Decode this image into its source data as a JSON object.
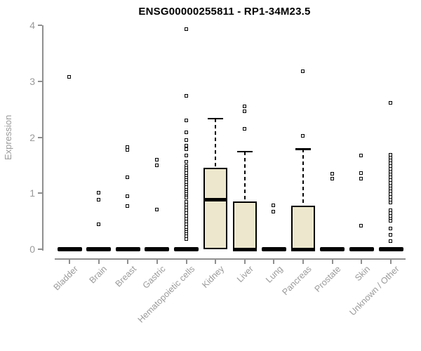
{
  "chart_data": {
    "type": "boxplot",
    "title": "ENSG00000255811 - RP1-34M23.5",
    "ylabel": "Expression",
    "xlabel": "",
    "ylim": [
      0,
      4
    ],
    "yticks": [
      0,
      1,
      2,
      3,
      4
    ],
    "grid": false,
    "legend": null,
    "categories": [
      "Bladder",
      "Brain",
      "Breast",
      "Gastric",
      "Hematopoietic cells",
      "Kidney",
      "Liver",
      "Lung",
      "Pancreas",
      "Prostate",
      "Skin",
      "Unknown / Other"
    ],
    "series": [
      {
        "category": "Bladder",
        "q1": 0,
        "median": 0,
        "q3": 0,
        "whisker_low": 0,
        "whisker_high": 0,
        "outliers": [
          3.08
        ]
      },
      {
        "category": "Brain",
        "q1": 0,
        "median": 0,
        "q3": 0,
        "whisker_low": 0,
        "whisker_high": 0,
        "outliers": [
          1.0,
          0.88,
          0.44
        ]
      },
      {
        "category": "Breast",
        "q1": 0,
        "median": 0,
        "q3": 0,
        "whisker_low": 0,
        "whisker_high": 0,
        "outliers": [
          1.82,
          1.77,
          1.28,
          0.94,
          0.77
        ]
      },
      {
        "category": "Gastric",
        "q1": 0,
        "median": 0,
        "q3": 0,
        "whisker_low": 0,
        "whisker_high": 0,
        "outliers": [
          1.59,
          1.49,
          0.7
        ]
      },
      {
        "category": "Hematopoietic cells",
        "q1": 0,
        "median": 0,
        "q3": 0,
        "whisker_low": 0,
        "whisker_high": 0,
        "outliers": [
          3.93,
          2.74,
          2.3,
          2.08,
          1.95,
          1.85,
          1.78,
          1.67,
          1.56,
          1.48,
          1.44,
          1.4,
          1.36,
          1.31,
          1.27,
          1.23,
          1.19,
          1.14,
          1.1,
          1.06,
          1.02,
          0.98,
          0.94,
          0.91,
          0.84,
          0.79,
          0.74,
          0.69,
          0.64,
          0.59,
          0.54,
          0.49,
          0.44,
          0.39,
          0.34,
          0.3,
          0.26,
          0.22,
          0.18
        ]
      },
      {
        "category": "Kidney",
        "q1": 0,
        "median": 0.88,
        "q3": 1.46,
        "whisker_low": 0,
        "whisker_high": 2.34,
        "outliers": []
      },
      {
        "category": "Liver",
        "q1": 0,
        "median": 0,
        "q3": 0.85,
        "whisker_low": 0,
        "whisker_high": 1.75,
        "outliers": [
          2.55,
          2.46,
          2.15
        ]
      },
      {
        "category": "Lung",
        "q1": 0,
        "median": 0,
        "q3": 0,
        "whisker_low": 0,
        "whisker_high": 0,
        "outliers": [
          0.78,
          0.67
        ]
      },
      {
        "category": "Pancreas",
        "q1": 0,
        "median": 0,
        "q3": 0.78,
        "whisker_low": 0,
        "whisker_high": 1.79,
        "outliers": [
          3.17,
          2.02
        ]
      },
      {
        "category": "Prostate",
        "q1": 0,
        "median": 0,
        "q3": 0,
        "whisker_low": 0,
        "whisker_high": 0,
        "outliers": [
          1.34,
          1.25
        ]
      },
      {
        "category": "Skin",
        "q1": 0,
        "median": 0,
        "q3": 0,
        "whisker_low": 0,
        "whisker_high": 0,
        "outliers": [
          1.67,
          1.35,
          1.26,
          0.42
        ]
      },
      {
        "category": "Unknown / Other",
        "q1": 0,
        "median": 0,
        "q3": 0,
        "whisker_low": 0,
        "whisker_high": 0,
        "outliers": [
          2.61,
          1.68,
          1.63,
          1.58,
          1.53,
          1.48,
          1.43,
          1.38,
          1.33,
          1.28,
          1.23,
          1.18,
          1.13,
          1.08,
          1.03,
          0.98,
          0.93,
          0.88,
          0.83,
          0.69,
          0.64,
          0.59,
          0.54,
          0.5,
          0.37,
          0.25,
          0.14
        ]
      }
    ],
    "colors": {
      "box_fill": "#EDE7CD",
      "box_border": "#000000",
      "median": "#000000",
      "outlier_border": "#000000",
      "axis": "#8f8f8f",
      "tick_label": "#9a9a9a",
      "title": "#000000",
      "background": "#ffffff"
    }
  }
}
